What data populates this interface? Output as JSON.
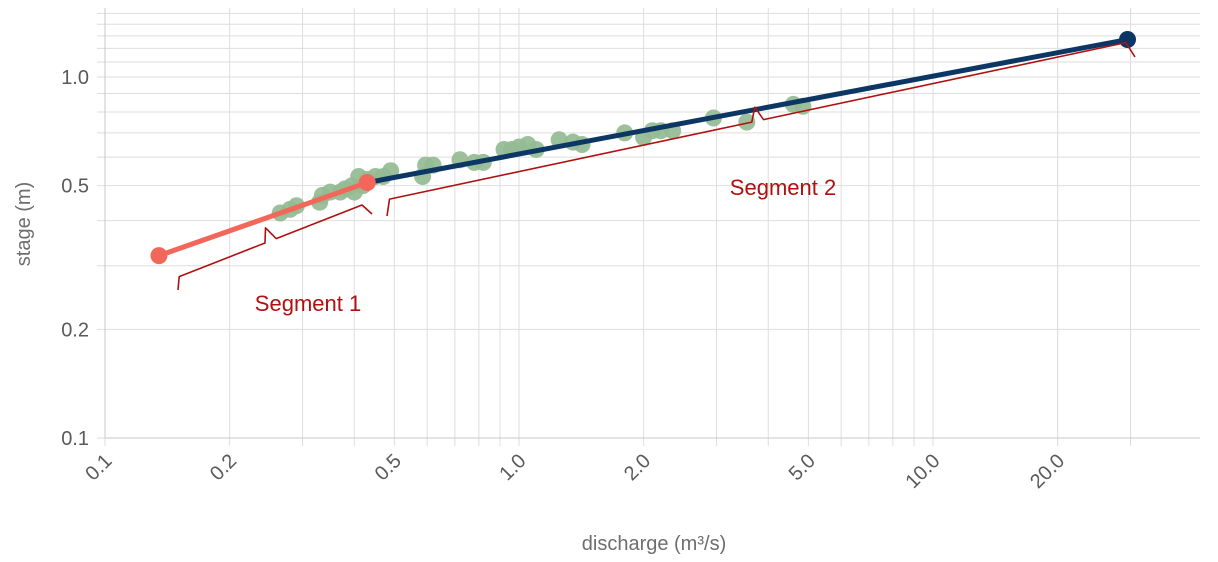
{
  "chart_data": {
    "type": "scatter",
    "xlabel": "discharge (m³/s)",
    "ylabel": "stage (m)",
    "x_scale": "log",
    "y_scale": "log",
    "xlim": [
      0.1,
      32
    ],
    "ylim": [
      0.1,
      1.5
    ],
    "x_ticks": [
      {
        "value": 0.1,
        "label": "0.1"
      },
      {
        "value": 0.2,
        "label": "0.2"
      },
      {
        "value": 0.5,
        "label": "0.5"
      },
      {
        "value": 1.0,
        "label": "1.0"
      },
      {
        "value": 2.0,
        "label": "2.0"
      },
      {
        "value": 5.0,
        "label": "5.0"
      },
      {
        "value": 10.0,
        "label": "10.0"
      },
      {
        "value": 20.0,
        "label": "20.0"
      }
    ],
    "y_ticks": [
      {
        "value": 0.1,
        "label": "0.1"
      },
      {
        "value": 0.2,
        "label": "0.2"
      },
      {
        "value": 0.5,
        "label": "0.5"
      },
      {
        "value": 1.0,
        "label": "1.0"
      }
    ],
    "grid": true,
    "colors": {
      "observations": "#94bb94",
      "segment1": "#f2675a",
      "segment2": "#0c3663",
      "annotation": "#b01010"
    },
    "observations": [
      {
        "x": 0.265,
        "y": 0.42
      },
      {
        "x": 0.28,
        "y": 0.43
      },
      {
        "x": 0.29,
        "y": 0.44
      },
      {
        "x": 0.33,
        "y": 0.45
      },
      {
        "x": 0.335,
        "y": 0.47
      },
      {
        "x": 0.35,
        "y": 0.48
      },
      {
        "x": 0.37,
        "y": 0.48
      },
      {
        "x": 0.38,
        "y": 0.49
      },
      {
        "x": 0.395,
        "y": 0.5
      },
      {
        "x": 0.4,
        "y": 0.48
      },
      {
        "x": 0.41,
        "y": 0.53
      },
      {
        "x": 0.42,
        "y": 0.5
      },
      {
        "x": 0.43,
        "y": 0.52
      },
      {
        "x": 0.45,
        "y": 0.53
      },
      {
        "x": 0.47,
        "y": 0.53
      },
      {
        "x": 0.49,
        "y": 0.55
      },
      {
        "x": 0.585,
        "y": 0.53
      },
      {
        "x": 0.595,
        "y": 0.57
      },
      {
        "x": 0.62,
        "y": 0.57
      },
      {
        "x": 0.72,
        "y": 0.59
      },
      {
        "x": 0.78,
        "y": 0.58
      },
      {
        "x": 0.82,
        "y": 0.58
      },
      {
        "x": 0.92,
        "y": 0.63
      },
      {
        "x": 0.96,
        "y": 0.63
      },
      {
        "x": 1.0,
        "y": 0.64
      },
      {
        "x": 1.05,
        "y": 0.65
      },
      {
        "x": 1.1,
        "y": 0.63
      },
      {
        "x": 1.25,
        "y": 0.67
      },
      {
        "x": 1.35,
        "y": 0.66
      },
      {
        "x": 1.42,
        "y": 0.65
      },
      {
        "x": 1.8,
        "y": 0.7
      },
      {
        "x": 2.0,
        "y": 0.68
      },
      {
        "x": 2.1,
        "y": 0.71
      },
      {
        "x": 2.2,
        "y": 0.71
      },
      {
        "x": 2.35,
        "y": 0.71
      },
      {
        "x": 2.95,
        "y": 0.77
      },
      {
        "x": 3.55,
        "y": 0.75
      },
      {
        "x": 4.6,
        "y": 0.84
      },
      {
        "x": 4.85,
        "y": 0.83
      }
    ],
    "segments": [
      {
        "label": "Segment 1",
        "color": "#f2675a",
        "start": {
          "x": 0.135,
          "y": 0.32
        },
        "end": {
          "x": 0.43,
          "y": 0.51
        }
      },
      {
        "label": "Segment 2",
        "color": "#0c3663",
        "start": {
          "x": 0.43,
          "y": 0.51
        },
        "end": {
          "x": 29.5,
          "y": 1.27
        }
      }
    ]
  }
}
